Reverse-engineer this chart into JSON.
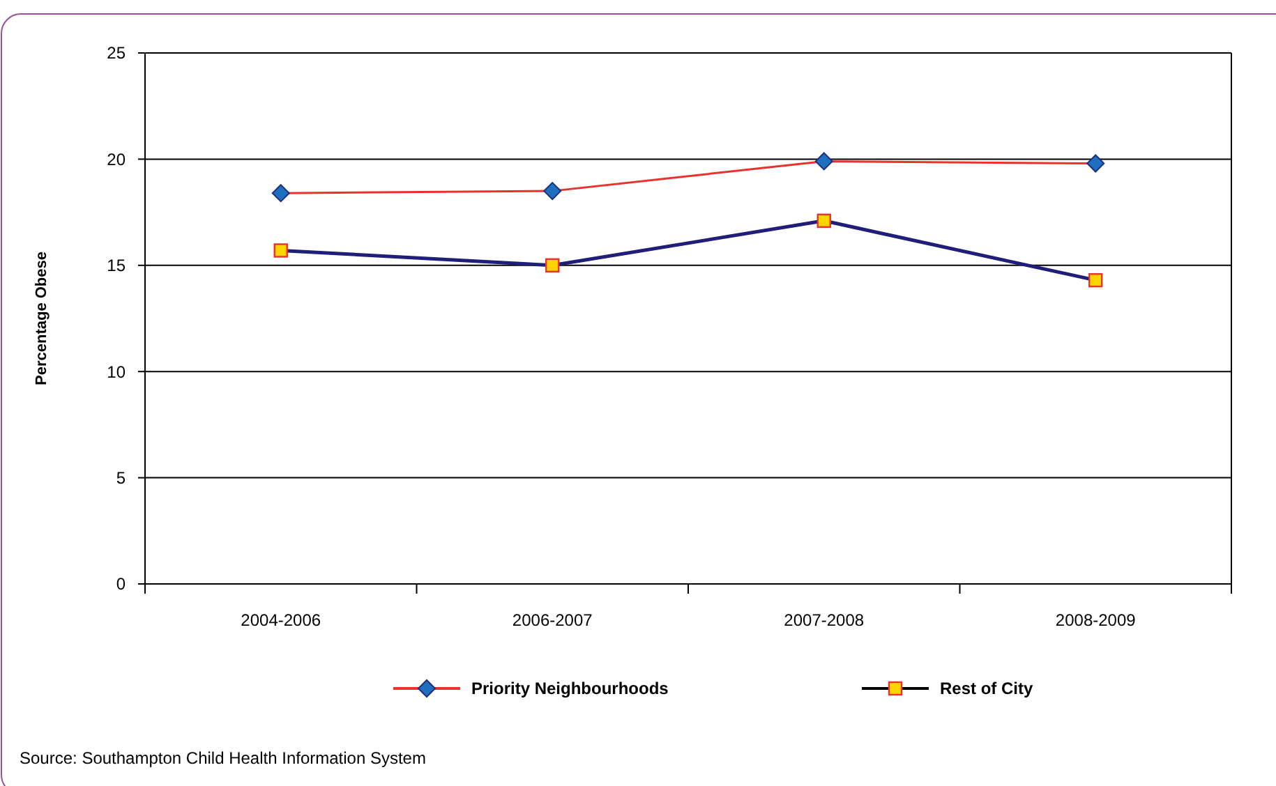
{
  "chart_data": {
    "type": "line",
    "ylabel": "Percentage Obese",
    "categories": [
      "2004-2006",
      "2006-2007",
      "2007-2008",
      "2008-2009"
    ],
    "series": [
      {
        "name": "Priority Neighbourhoods",
        "color": "#e8322b",
        "marker": "diamond",
        "values": [
          18.4,
          18.5,
          19.9,
          19.8
        ]
      },
      {
        "name": "Rest of City",
        "color": "#1f1f7a",
        "marker": "square",
        "values": [
          15.7,
          15.0,
          17.1,
          14.3
        ]
      }
    ],
    "ylim": [
      0,
      25
    ],
    "yticks": [
      0,
      5,
      10,
      15,
      20,
      25
    ],
    "grid": "y",
    "legend": "bottom",
    "annotations": [
      "Source: Southampton Child Health Information System"
    ]
  }
}
